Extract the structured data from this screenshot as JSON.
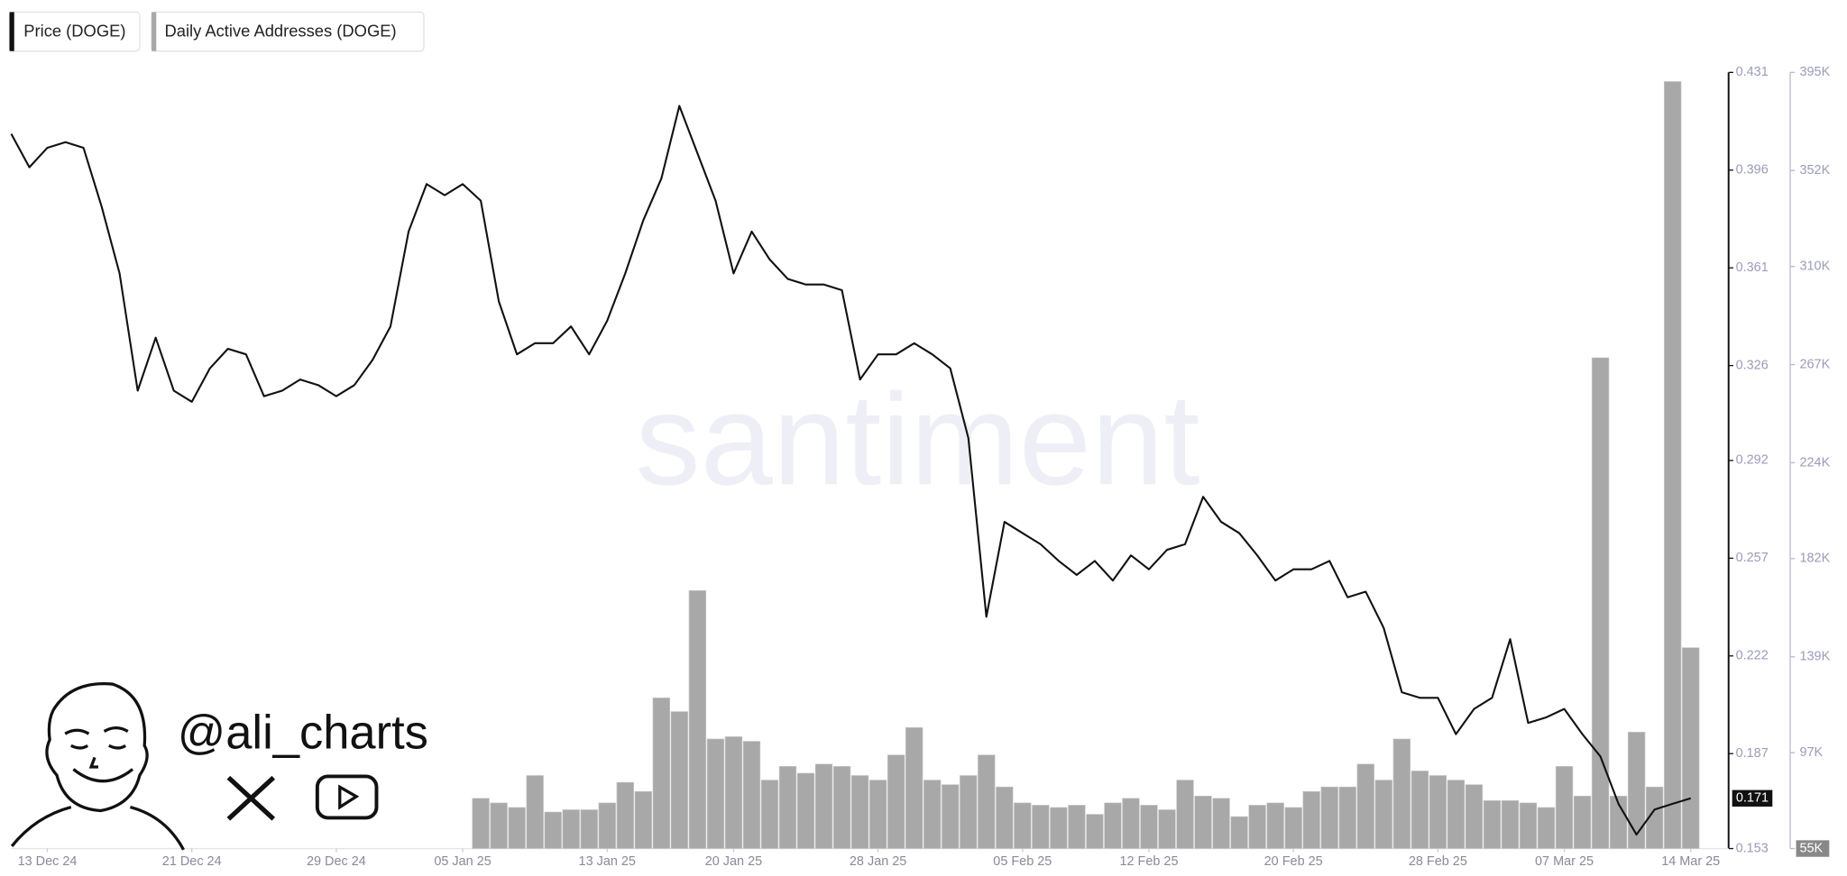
{
  "chart_data": {
    "type": "line_bar",
    "watermark": "santiment",
    "handle": "@ali_charts",
    "x": [
      "2024-12-11",
      "2024-12-12",
      "2024-12-13",
      "2024-12-14",
      "2024-12-15",
      "2024-12-16",
      "2024-12-17",
      "2024-12-18",
      "2024-12-19",
      "2024-12-20",
      "2024-12-21",
      "2024-12-22",
      "2024-12-23",
      "2024-12-24",
      "2024-12-25",
      "2024-12-26",
      "2024-12-27",
      "2024-12-28",
      "2024-12-29",
      "2024-12-30",
      "2024-12-31",
      "2025-01-01",
      "2025-01-02",
      "2025-01-03",
      "2025-01-04",
      "2025-01-05",
      "2025-01-06",
      "2025-01-07",
      "2025-01-08",
      "2025-01-09",
      "2025-01-10",
      "2025-01-11",
      "2025-01-12",
      "2025-01-13",
      "2025-01-14",
      "2025-01-15",
      "2025-01-16",
      "2025-01-17",
      "2025-01-18",
      "2025-01-19",
      "2025-01-20",
      "2025-01-21",
      "2025-01-22",
      "2025-01-23",
      "2025-01-24",
      "2025-01-25",
      "2025-01-26",
      "2025-01-27",
      "2025-01-28",
      "2025-01-29",
      "2025-01-30",
      "2025-01-31",
      "2025-02-01",
      "2025-02-02",
      "2025-02-03",
      "2025-02-04",
      "2025-02-05",
      "2025-02-06",
      "2025-02-07",
      "2025-02-08",
      "2025-02-09",
      "2025-02-10",
      "2025-02-11",
      "2025-02-12",
      "2025-02-13",
      "2025-02-14",
      "2025-02-15",
      "2025-02-16",
      "2025-02-17",
      "2025-02-18",
      "2025-02-19",
      "2025-02-20",
      "2025-02-21",
      "2025-02-22",
      "2025-02-23",
      "2025-02-24",
      "2025-02-25",
      "2025-02-26",
      "2025-02-27",
      "2025-02-28",
      "2025-03-01",
      "2025-03-02",
      "2025-03-03",
      "2025-03-04",
      "2025-03-05",
      "2025-03-06",
      "2025-03-07",
      "2025-03-08",
      "2025-03-09",
      "2025-03-10",
      "2025-03-11",
      "2025-03-12",
      "2025-03-13",
      "2025-03-14"
    ],
    "series": [
      {
        "name": "Price (DOGE)",
        "color": "#111111",
        "axis": "y",
        "values": [
          0.409,
          0.397,
          0.404,
          0.406,
          0.404,
          0.383,
          0.359,
          0.317,
          0.336,
          0.317,
          0.313,
          0.325,
          0.332,
          0.33,
          0.315,
          0.317,
          0.321,
          0.319,
          0.315,
          0.319,
          0.328,
          0.34,
          0.374,
          0.391,
          0.387,
          0.391,
          0.385,
          0.349,
          0.33,
          0.334,
          0.334,
          0.34,
          0.33,
          0.342,
          0.359,
          0.378,
          0.393,
          0.419,
          0.402,
          0.385,
          0.359,
          0.374,
          0.364,
          0.357,
          0.355,
          0.355,
          0.353,
          0.321,
          0.33,
          0.33,
          0.334,
          0.33,
          0.325,
          0.3,
          0.236,
          0.27,
          0.266,
          0.262,
          0.256,
          0.251,
          0.256,
          0.249,
          0.258,
          0.253,
          0.26,
          0.262,
          0.279,
          0.27,
          0.266,
          0.258,
          0.249,
          0.253,
          0.253,
          0.256,
          0.243,
          0.245,
          0.232,
          0.209,
          0.207,
          0.207,
          0.194,
          0.203,
          0.207,
          0.228,
          0.198,
          0.2,
          0.203,
          0.194,
          0.186,
          0.169,
          0.158,
          0.167,
          0.169,
          0.171
        ]
      },
      {
        "name": "Daily Active Addresses (DOGE)",
        "color": "#a8a8a8",
        "axis": "y2",
        "values": [
          null,
          null,
          null,
          null,
          null,
          null,
          null,
          null,
          null,
          null,
          null,
          null,
          null,
          null,
          null,
          null,
          null,
          null,
          null,
          null,
          null,
          null,
          null,
          null,
          null,
          null,
          77000,
          75000,
          73000,
          87000,
          71000,
          72000,
          72000,
          75000,
          84000,
          80000,
          121000,
          115000,
          168000,
          103000,
          104000,
          102000,
          85000,
          91000,
          88000,
          92000,
          91000,
          87000,
          85000,
          96000,
          108000,
          85000,
          83000,
          87000,
          96000,
          82000,
          75000,
          74000,
          73000,
          74000,
          70000,
          75000,
          77000,
          74000,
          72000,
          85000,
          78000,
          77000,
          69000,
          74000,
          75000,
          73000,
          80000,
          82000,
          82000,
          92000,
          85000,
          103000,
          89000,
          87000,
          85000,
          83000,
          76000,
          76000,
          75000,
          73000,
          91000,
          78000,
          270000,
          78000,
          106000,
          82000,
          391000,
          143000
        ]
      }
    ],
    "xlim": [
      "2024-12-11",
      "2025-03-14"
    ],
    "xticks": [
      {
        "value": "2024-12-13",
        "label": "13 Dec 24"
      },
      {
        "value": "2024-12-21",
        "label": "21 Dec 24"
      },
      {
        "value": "2024-12-29",
        "label": "29 Dec 24"
      },
      {
        "value": "2025-01-05",
        "label": "05 Jan 25"
      },
      {
        "value": "2025-01-13",
        "label": "13 Jan 25"
      },
      {
        "value": "2025-01-20",
        "label": "20 Jan 25"
      },
      {
        "value": "2025-01-28",
        "label": "28 Jan 25"
      },
      {
        "value": "2025-02-05",
        "label": "05 Feb 25"
      },
      {
        "value": "2025-02-12",
        "label": "12 Feb 25"
      },
      {
        "value": "2025-02-20",
        "label": "20 Feb 25"
      },
      {
        "value": "2025-02-28",
        "label": "28 Feb 25"
      },
      {
        "value": "2025-03-07",
        "label": "07 Mar 25"
      },
      {
        "value": "2025-03-14",
        "label": "14 Mar 25"
      }
    ],
    "ylim": [
      0.153,
      0.431
    ],
    "yticks": [
      0.431,
      0.396,
      0.361,
      0.326,
      0.292,
      0.257,
      0.222,
      0.187,
      0.153
    ],
    "y2lim": [
      55000,
      395000
    ],
    "y2ticks": [
      {
        "value": 395000,
        "label": "395K"
      },
      {
        "value": 352000,
        "label": "352K"
      },
      {
        "value": 310000,
        "label": "310K"
      },
      {
        "value": 267000,
        "label": "267K"
      },
      {
        "value": 224000,
        "label": "224K"
      },
      {
        "value": 182000,
        "label": "182K"
      },
      {
        "value": 139000,
        "label": "139K"
      },
      {
        "value": 97000,
        "label": "97K"
      },
      {
        "value": 55000,
        "label": "55K"
      }
    ]
  }
}
